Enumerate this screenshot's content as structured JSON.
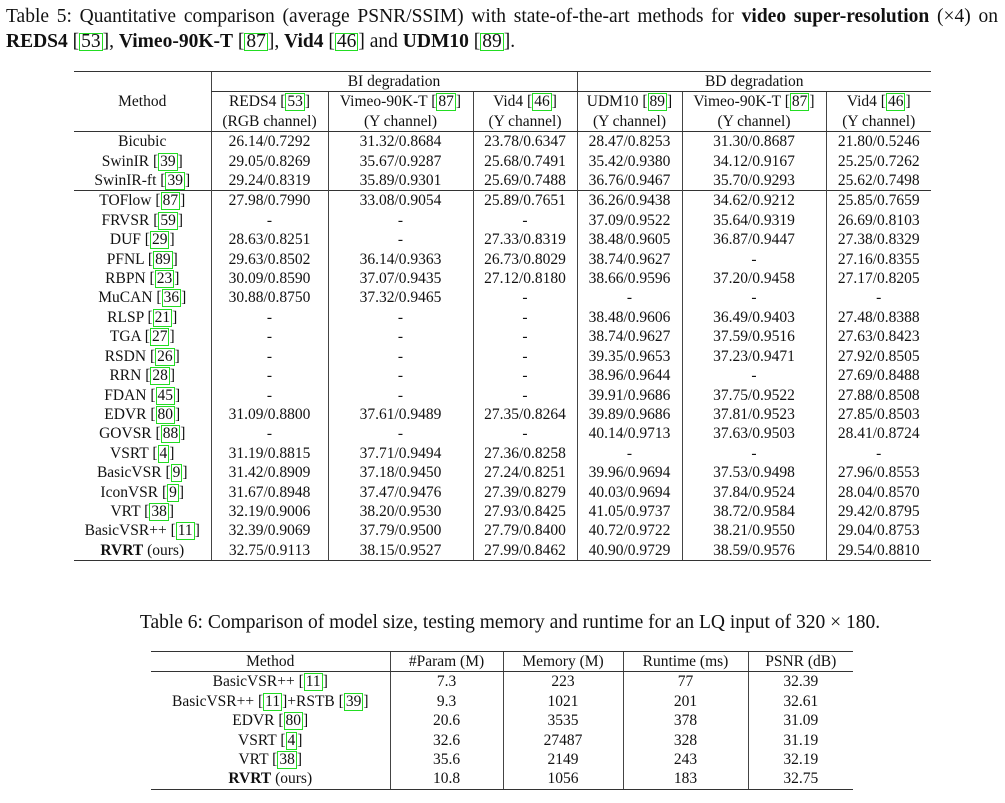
{
  "table5": {
    "caption": {
      "prefix": "Table 5: Quantitative comparison (average PSNR/SSIM) with state-of-the-art methods for ",
      "bold1": "video super-resolution",
      "mid1": " (×4) on ",
      "bold2": "REDS4",
      "ref1": "53",
      "sep1": ", ",
      "bold3": "Vimeo-90K-T",
      "ref2": "87",
      "sep2": ", ",
      "bold4": "Vid4",
      "ref3": "46",
      "sep3": " and ",
      "bold5": "UDM10",
      "ref4": "89",
      "end": "."
    },
    "header": {
      "method": "Method",
      "groups": [
        "BI degradation",
        "BD degradation"
      ],
      "columns": [
        {
          "name": "REDS4",
          "ref": "53",
          "channel": "(RGB channel)"
        },
        {
          "name": "Vimeo-90K-T",
          "ref": "87",
          "channel": "(Y channel)"
        },
        {
          "name": "Vid4",
          "ref": "46",
          "channel": "(Y channel)"
        },
        {
          "name": "UDM10",
          "ref": "89",
          "channel": "(Y channel)"
        },
        {
          "name": "Vimeo-90K-T",
          "ref": "87",
          "channel": "(Y channel)"
        },
        {
          "name": "Vid4",
          "ref": "46",
          "channel": "(Y channel)"
        }
      ]
    },
    "rows": [
      {
        "method": "Bicubic",
        "ref": "",
        "values": [
          "26.14/0.7292",
          "31.32/0.8684",
          "23.78/0.6347",
          "28.47/0.8253",
          "31.30/0.8687",
          "21.80/0.5246"
        ]
      },
      {
        "method": "SwinIR",
        "ref": "39",
        "values": [
          "29.05/0.8269",
          "35.67/0.9287",
          "25.68/0.7491",
          "35.42/0.9380",
          "34.12/0.9167",
          "25.25/0.7262"
        ]
      },
      {
        "method": "SwinIR-ft",
        "ref": "39",
        "values": [
          "29.24/0.8319",
          "35.89/0.9301",
          "25.69/0.7488",
          "36.76/0.9467",
          "35.70/0.9293",
          "25.62/0.7498"
        ]
      },
      {
        "method": "TOFlow",
        "ref": "87",
        "values": [
          "27.98/0.7990",
          "33.08/0.9054",
          "25.89/0.7651",
          "36.26/0.9438",
          "34.62/0.9212",
          "25.85/0.7659"
        ]
      },
      {
        "method": "FRVSR",
        "ref": "59",
        "values": [
          "-",
          "-",
          "-",
          "37.09/0.9522",
          "35.64/0.9319",
          "26.69/0.8103"
        ]
      },
      {
        "method": "DUF",
        "ref": "29",
        "values": [
          "28.63/0.8251",
          "-",
          "27.33/0.8319",
          "38.48/0.9605",
          "36.87/0.9447",
          "27.38/0.8329"
        ]
      },
      {
        "method": "PFNL",
        "ref": "89",
        "values": [
          "29.63/0.8502",
          "36.14/0.9363",
          "26.73/0.8029",
          "38.74/0.9627",
          "-",
          "27.16/0.8355"
        ]
      },
      {
        "method": "RBPN",
        "ref": "23",
        "values": [
          "30.09/0.8590",
          "37.07/0.9435",
          "27.12/0.8180",
          "38.66/0.9596",
          "37.20/0.9458",
          "27.17/0.8205"
        ]
      },
      {
        "method": "MuCAN",
        "ref": "36",
        "values": [
          "30.88/0.8750",
          "37.32/0.9465",
          "-",
          "-",
          "-",
          "-"
        ]
      },
      {
        "method": "RLSP",
        "ref": "21",
        "values": [
          "-",
          "-",
          "-",
          "38.48/0.9606",
          "36.49/0.9403",
          "27.48/0.8388"
        ]
      },
      {
        "method": "TGA",
        "ref": "27",
        "values": [
          "-",
          "-",
          "-",
          "38.74/0.9627",
          "37.59/0.9516",
          "27.63/0.8423"
        ]
      },
      {
        "method": "RSDN",
        "ref": "26",
        "values": [
          "-",
          "-",
          "-",
          "39.35/0.9653",
          "37.23/0.9471",
          "27.92/0.8505"
        ]
      },
      {
        "method": "RRN",
        "ref": "28",
        "values": [
          "-",
          "-",
          "-",
          "38.96/0.9644",
          "-",
          "27.69/0.8488"
        ]
      },
      {
        "method": "FDAN",
        "ref": "45",
        "values": [
          "-",
          "-",
          "-",
          "39.91/0.9686",
          "37.75/0.9522",
          "27.88/0.8508"
        ]
      },
      {
        "method": "EDVR",
        "ref": "80",
        "values": [
          "31.09/0.8800",
          "37.61/0.9489",
          "27.35/0.8264",
          "39.89/0.9686",
          "37.81/0.9523",
          "27.85/0.8503"
        ]
      },
      {
        "method": "GOVSR",
        "ref": "88",
        "values": [
          "-",
          "-",
          "-",
          "40.14/0.9713",
          "37.63/0.9503",
          "28.41/0.8724"
        ]
      },
      {
        "method": "VSRT",
        "ref": "4",
        "values": [
          "31.19/0.8815",
          "37.71/0.9494",
          "27.36/0.8258",
          "-",
          "-",
          "-"
        ]
      },
      {
        "method": "BasicVSR",
        "ref": "9",
        "values": [
          "31.42/0.8909",
          "37.18/0.9450",
          "27.24/0.8251",
          "39.96/0.9694",
          "37.53/0.9498",
          "27.96/0.8553"
        ]
      },
      {
        "method": "IconVSR",
        "ref": "9",
        "values": [
          "31.67/0.8948",
          "37.47/0.9476",
          "27.39/0.8279",
          "40.03/0.9694",
          "37.84/0.9524",
          "28.04/0.8570"
        ]
      },
      {
        "method": "VRT",
        "ref": "38",
        "values": [
          "32.19/0.9006",
          "38.20/0.9530",
          "27.93/0.8425",
          "41.05/0.9737",
          "38.72/0.9584",
          "29.42/0.8795"
        ]
      },
      {
        "method": "BasicVSR++",
        "ref": "11",
        "values": [
          "32.39/0.9069",
          "37.79/0.9500",
          "27.79/0.8400",
          "40.72/0.9722",
          "38.21/0.9550",
          "29.04/0.8753"
        ]
      },
      {
        "method": "RVRT",
        "suffix": " (ours)",
        "bold": true,
        "values": [
          "32.75/0.9113",
          "38.15/0.9527",
          "27.99/0.8462",
          "40.90/0.9729",
          "38.59/0.9576",
          "29.54/0.8810"
        ]
      }
    ]
  },
  "table6": {
    "caption": "Table 6: Comparison of model size, testing memory and runtime for an LQ input of 320 × 180.",
    "header": [
      "Method",
      "#Param (M)",
      "Memory (M)",
      "Runtime (ms)",
      "PSNR (dB)"
    ],
    "rows": [
      {
        "method": "BasicVSR++",
        "ref": "11",
        "extra": "",
        "ref2": "",
        "values": [
          "7.3",
          "223",
          "77",
          "32.39"
        ]
      },
      {
        "method": "BasicVSR++",
        "ref": "11",
        "extra": "+RSTB",
        "ref2": "39",
        "values": [
          "9.3",
          "1021",
          "201",
          "32.61"
        ]
      },
      {
        "method": "EDVR",
        "ref": "80",
        "extra": "",
        "ref2": "",
        "values": [
          "20.6",
          "3535",
          "378",
          "31.09"
        ]
      },
      {
        "method": "VSRT",
        "ref": "4",
        "extra": "",
        "ref2": "",
        "values": [
          "32.6",
          "27487",
          "328",
          "31.19"
        ]
      },
      {
        "method": "VRT",
        "ref": "38",
        "extra": "",
        "ref2": "",
        "values": [
          "35.6",
          "2149",
          "243",
          "32.19"
        ]
      },
      {
        "method": "RVRT",
        "suffix": " (ours)",
        "bold": true,
        "values": [
          "10.8",
          "1056",
          "183",
          "32.75"
        ]
      }
    ]
  },
  "colors": {
    "citation_box": "#22dd22",
    "rule": "#333333",
    "text": "#111111"
  }
}
